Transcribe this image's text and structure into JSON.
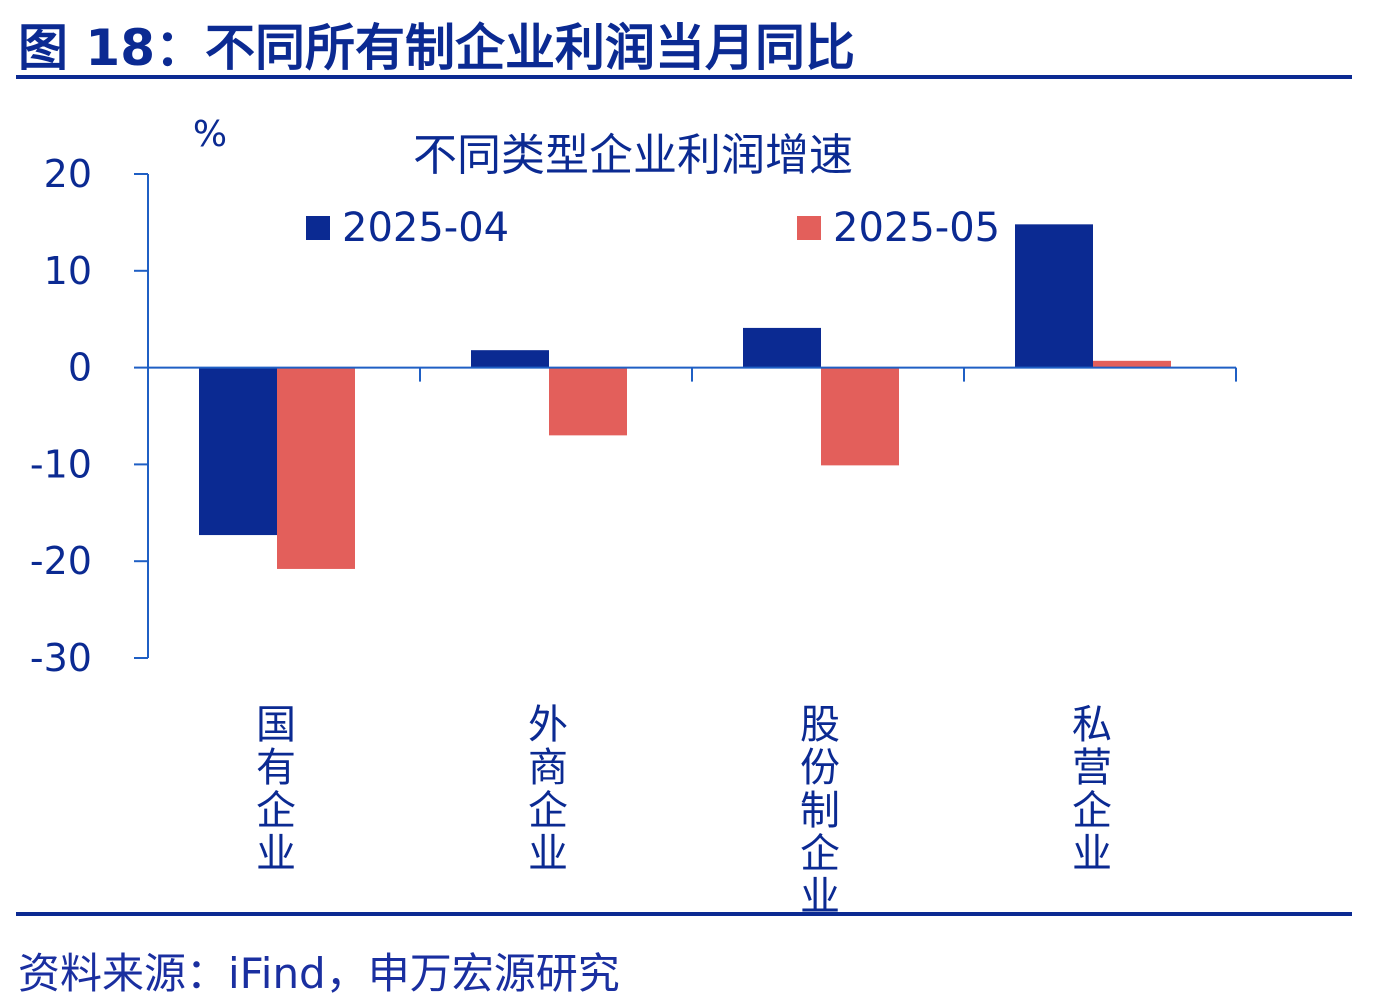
{
  "figure": {
    "title": "图 18：不同所有制企业利润当月同比",
    "source": "资料来源：iFind，申万宏源研究"
  },
  "chart_data": {
    "type": "bar",
    "title": "不同类型企业利润增速",
    "ylabel": "%",
    "xlabel": "",
    "ylim": [
      -30,
      20
    ],
    "yticks": [
      20,
      10,
      0,
      -10,
      -20,
      -30
    ],
    "categories": [
      "国有企业",
      "外商企业",
      "股份制企业",
      "私营企业"
    ],
    "legend_position": "top",
    "grid": false,
    "series": [
      {
        "name": "2025-04",
        "color": "#0b2a92",
        "values": [
          -17.3,
          1.8,
          4.1,
          14.8
        ]
      },
      {
        "name": "2025-05",
        "color": "#e35f5b",
        "values": [
          -20.8,
          -7.0,
          -10.1,
          0.7
        ]
      }
    ]
  }
}
